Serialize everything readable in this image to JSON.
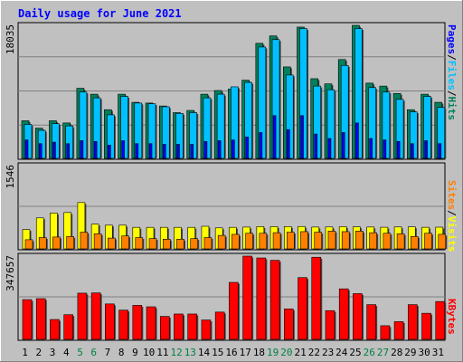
{
  "title": "Daily usage for June 2021",
  "colors": {
    "background": "#c0c0c0",
    "hits": "#00805c",
    "files": "#00c0ff",
    "pages": "#0000ff",
    "visits": "#ffff00",
    "sites": "#ff8000",
    "kbytes": "#ff0000",
    "weekend_label": "#008040",
    "title": "#0000ff"
  },
  "chart_data": [
    {
      "type": "bar",
      "panel": "hits-files-pages",
      "max_label": "18035",
      "ylim": [
        0,
        18035
      ],
      "legend": {
        "pages": "Pages",
        "files": "Files",
        "hits": "Hits",
        "sep": "/"
      },
      "series": [
        {
          "name": "Hits",
          "values": [
            5100,
            4100,
            5100,
            4800,
            9500,
            8700,
            6600,
            8700,
            7600,
            7500,
            7100,
            6200,
            6500,
            8700,
            9200,
            9400,
            10600,
            15600,
            16600,
            12400,
            17800,
            10800,
            10100,
            13400,
            18035,
            10200,
            9800,
            8800,
            6600,
            8700,
            7600
          ]
        },
        {
          "name": "Files",
          "values": [
            4600,
            3800,
            4700,
            4400,
            9000,
            8200,
            5900,
            8400,
            7500,
            7400,
            7000,
            6100,
            6200,
            8200,
            8700,
            9700,
            10300,
            15100,
            16100,
            11300,
            17600,
            9800,
            9300,
            12600,
            17600,
            9600,
            9000,
            8000,
            6300,
            8400,
            6900
          ]
        },
        {
          "name": "Pages",
          "values": [
            2500,
            2000,
            2200,
            2000,
            2400,
            2300,
            1800,
            2400,
            2000,
            2000,
            1900,
            1900,
            1900,
            2300,
            2400,
            2500,
            2900,
            3500,
            5800,
            3900,
            5800,
            3300,
            2700,
            3500,
            4800,
            2700,
            2500,
            2300,
            2000,
            2400,
            2000
          ]
        }
      ]
    },
    {
      "type": "bar",
      "panel": "visits-sites",
      "max_label": "1546",
      "ylim": [
        0,
        1546
      ],
      "legend": {
        "sites": "Sites",
        "visits": "Visits",
        "sep": "/"
      },
      "series": [
        {
          "name": "Visits",
          "values": [
            360,
            575,
            665,
            675,
            860,
            460,
            440,
            440,
            400,
            400,
            400,
            400,
            400,
            420,
            390,
            400,
            405,
            414,
            413,
            414,
            416,
            405,
            407,
            413,
            409,
            406,
            402,
            407,
            409,
            401,
            403
          ]
        },
        {
          "name": "Sites",
          "values": [
            170,
            210,
            220,
            230,
            310,
            280,
            200,
            240,
            210,
            190,
            180,
            180,
            190,
            210,
            250,
            270,
            290,
            290,
            300,
            310,
            320,
            310,
            330,
            320,
            330,
            300,
            290,
            280,
            230,
            290,
            270
          ]
        }
      ]
    },
    {
      "type": "bar",
      "panel": "kbytes",
      "max_label": "347657",
      "ylim": [
        0,
        347657
      ],
      "legend": {
        "kbytes": "KBytes"
      },
      "series": [
        {
          "name": "KBytes",
          "values": [
            166000,
            170000,
            83000,
            103000,
            193000,
            194000,
            148000,
            122000,
            142000,
            136000,
            96000,
            106000,
            106000,
            81000,
            114000,
            238000,
            347657,
            340000,
            330000,
            127000,
            258000,
            343000,
            120000,
            211000,
            191000,
            145000,
            57000,
            74000,
            145000,
            109000,
            158000
          ]
        }
      ]
    }
  ],
  "days": [
    "1",
    "2",
    "3",
    "4",
    "5",
    "6",
    "7",
    "8",
    "9",
    "10",
    "11",
    "12",
    "13",
    "14",
    "15",
    "16",
    "17",
    "18",
    "19",
    "20",
    "21",
    "22",
    "23",
    "24",
    "25",
    "26",
    "27",
    "28",
    "29",
    "30",
    "31"
  ],
  "weekend_days": [
    "5",
    "6",
    "12",
    "13",
    "19",
    "20",
    "26",
    "27"
  ]
}
